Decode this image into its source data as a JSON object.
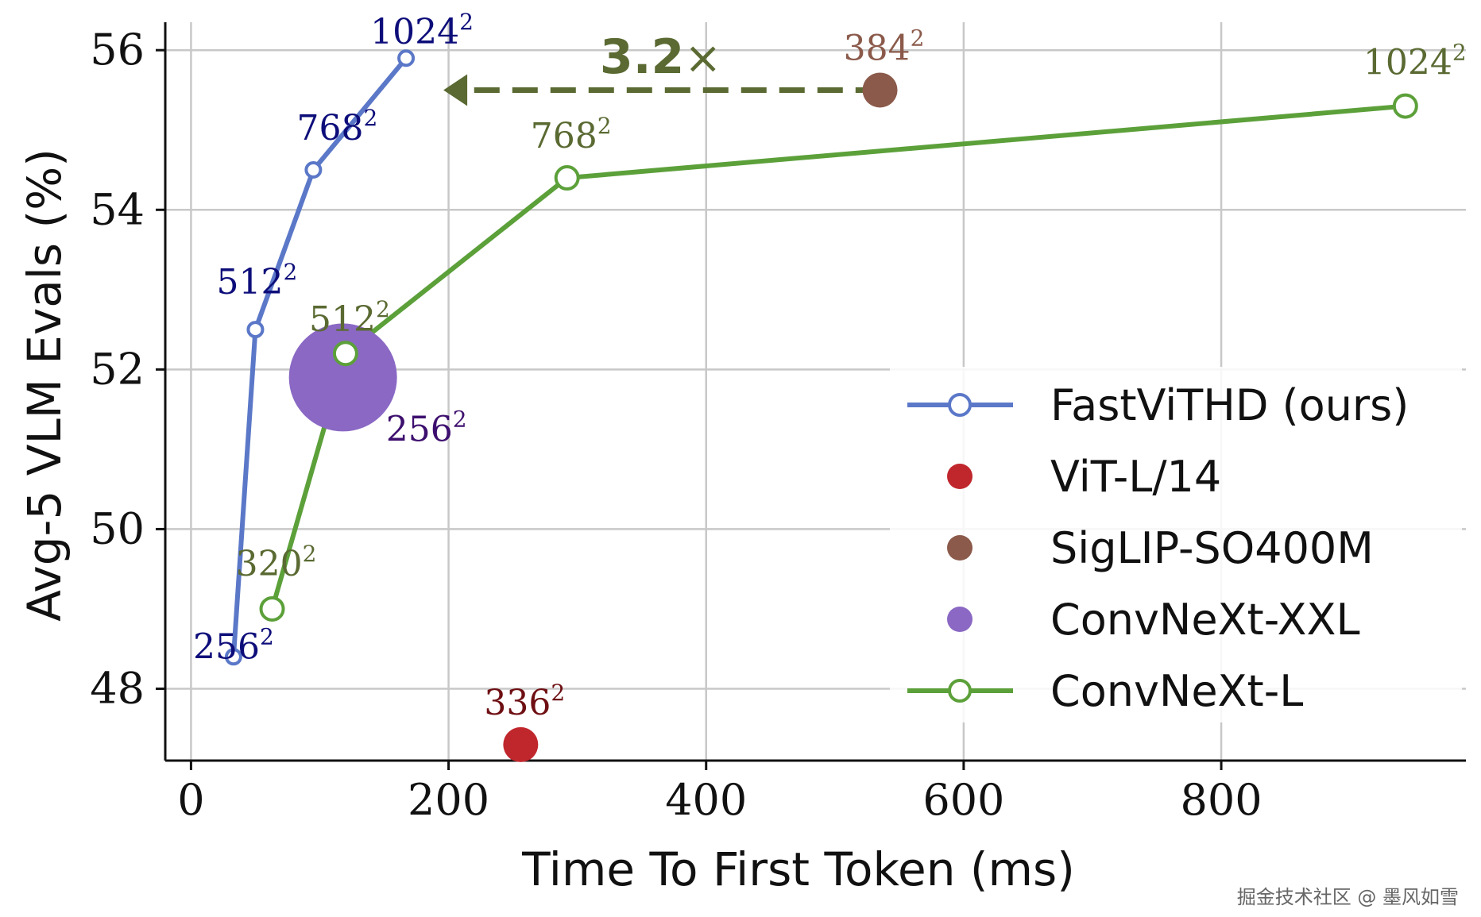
{
  "chart_data": {
    "type": "scatter",
    "xlabel": "Time To First Token (ms)",
    "ylabel": "Avg-5 VLM Evals (%)",
    "xlim": [
      -20,
      990
    ],
    "ylim": [
      47.1,
      56.35
    ],
    "xticks": [
      0,
      200,
      400,
      600,
      800
    ],
    "yticks": [
      48,
      50,
      52,
      54,
      56
    ],
    "grid": true,
    "legend_position": "right",
    "series": [
      {
        "name": "FastViTHD (ours)",
        "color": "#5b78c8",
        "label_color": "#0d0d7a",
        "marker": "open-circle",
        "line": true,
        "points": [
          {
            "x": 33,
            "y": 48.4,
            "label": "256",
            "sup": "2"
          },
          {
            "x": 50,
            "y": 52.5,
            "label": "512",
            "sup": "2"
          },
          {
            "x": 95,
            "y": 54.5,
            "label": "768",
            "sup": "2"
          },
          {
            "x": 167,
            "y": 55.9,
            "label": "1024",
            "sup": "2"
          }
        ]
      },
      {
        "name": "ViT-L/14",
        "color": "#c0272d",
        "label_color": "#6e0f13",
        "marker": "filled-circle",
        "line": false,
        "points": [
          {
            "x": 256,
            "y": 47.3,
            "label": "336",
            "sup": "2"
          }
        ]
      },
      {
        "name": "SigLIP-SO400M",
        "color": "#8b5a4b",
        "label_color": "#8b5a4b",
        "marker": "filled-circle",
        "line": false,
        "points": [
          {
            "x": 535,
            "y": 55.5,
            "label": "384",
            "sup": "2"
          }
        ]
      },
      {
        "name": "ConvNeXt-XXL",
        "color": "#8a68c4",
        "label_color": "#3d0f6e",
        "marker": "filled-circle-large",
        "line": false,
        "points": [
          {
            "x": 118,
            "y": 51.9,
            "label": "256",
            "sup": "2"
          }
        ]
      },
      {
        "name": "ConvNeXt-L",
        "color": "#5ca03a",
        "label_color": "#5a6a32",
        "marker": "open-circle",
        "line": true,
        "points": [
          {
            "x": 63,
            "y": 49.0,
            "label": "320",
            "sup": "2"
          },
          {
            "x": 120,
            "y": 52.2,
            "label": "512",
            "sup": "2"
          },
          {
            "x": 292,
            "y": 54.4,
            "label": "768",
            "sup": "2"
          },
          {
            "x": 943,
            "y": 55.3,
            "label": "1024",
            "sup": "2"
          }
        ]
      }
    ],
    "annotation": {
      "text": "3.2",
      "suffix": "×",
      "color": "#5a6a32",
      "arrow_from": {
        "x": 508,
        "y": 55.5
      },
      "arrow_to": {
        "x": 196,
        "y": 55.5
      }
    }
  },
  "watermark": "掘金技术社区 @ 墨风如雪"
}
